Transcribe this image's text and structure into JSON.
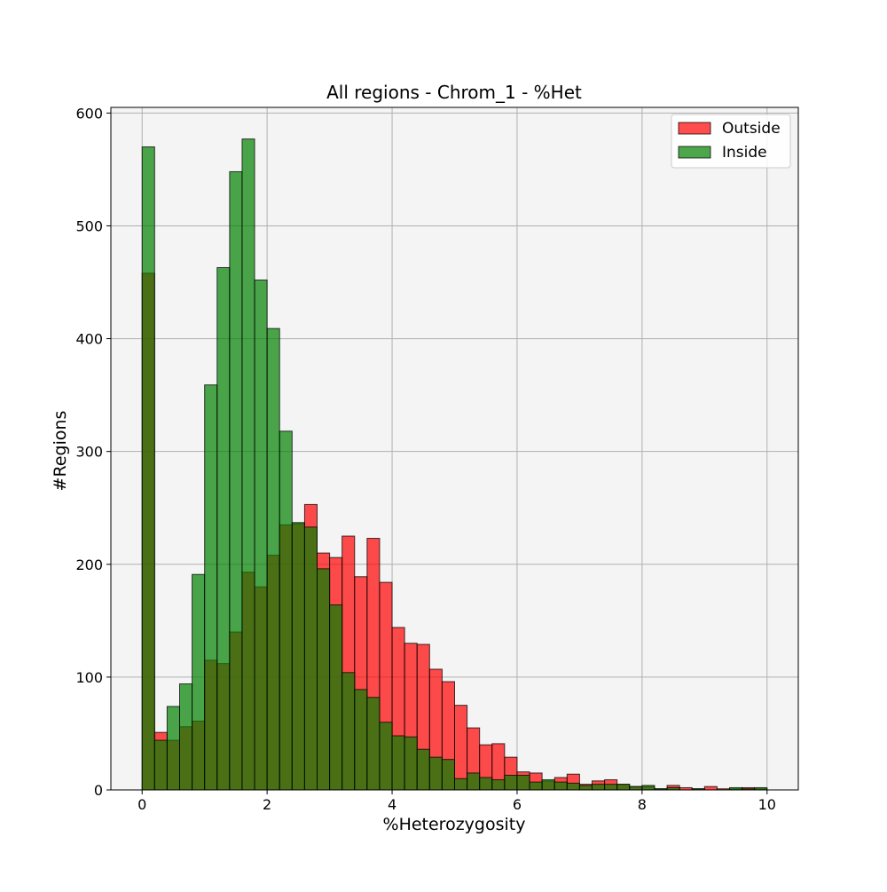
{
  "chart_data": {
    "type": "histogram",
    "title": "All regions - Chrom_1 - %Het",
    "xlabel": "%Heterozygosity",
    "ylabel": "#Regions",
    "xlim": [
      -0.5,
      10.5
    ],
    "ylim": [
      0,
      605
    ],
    "bin_edges_start": 0,
    "bin_width": 0.2,
    "xticks": [
      0,
      2,
      4,
      6,
      8,
      10
    ],
    "yticks": [
      0,
      100,
      200,
      300,
      400,
      500,
      600
    ],
    "xtick_labels": [
      "0",
      "2",
      "4",
      "6",
      "8",
      "10"
    ],
    "ytick_labels": [
      "0",
      "100",
      "200",
      "300",
      "400",
      "500",
      "600"
    ],
    "grid": true,
    "background": "#f4f4f4",
    "legend_position": "top-right",
    "series": [
      {
        "name": "Outside",
        "color": "#ff0000",
        "alpha": 0.7,
        "values": [
          458,
          51,
          44,
          56,
          61,
          115,
          112,
          140,
          193,
          180,
          208,
          235,
          236,
          253,
          210,
          206,
          225,
          189,
          223,
          184,
          144,
          130,
          129,
          107,
          96,
          75,
          55,
          40,
          41,
          29,
          16,
          15,
          8,
          11,
          14,
          5,
          8,
          9,
          5,
          3,
          3,
          1,
          4,
          2,
          1,
          3,
          1,
          1,
          2,
          1
        ]
      },
      {
        "name": "Inside",
        "color": "#008000",
        "alpha": 0.7,
        "values": [
          570,
          44,
          74,
          94,
          191,
          359,
          463,
          548,
          577,
          452,
          409,
          318,
          237,
          233,
          196,
          164,
          104,
          89,
          82,
          60,
          48,
          47,
          36,
          29,
          27,
          10,
          15,
          11,
          9,
          13,
          13,
          7,
          9,
          7,
          6,
          4,
          5,
          5,
          5,
          3,
          4,
          1,
          2,
          0,
          1,
          0,
          0,
          2,
          1,
          2
        ]
      }
    ]
  }
}
